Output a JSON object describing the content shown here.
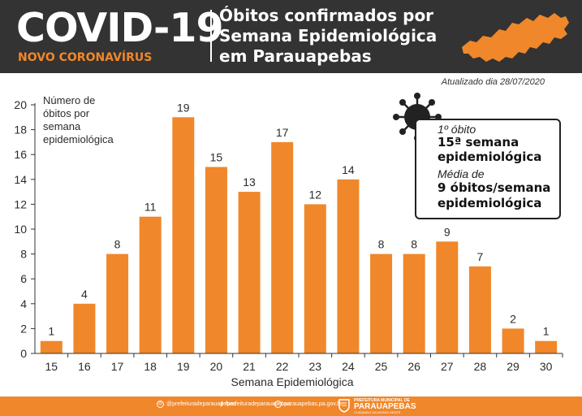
{
  "header": {
    "title": "COVID-19",
    "subtitle": "NOVO CORONAVÍRUS",
    "heading": "Óbitos confirmados por Semana Epidemiológica em Parauapebas"
  },
  "updated": "Atualizado dia 28/07/2020",
  "y_axis_description": "Número de óbitos por semana epidemiológica",
  "info_box": {
    "first_death_label": "1º óbito",
    "first_death_value": "15ª semana epidemiológica",
    "average_label": "Média de",
    "average_value": "9 óbitos/semana epidemiológica"
  },
  "chart_data": {
    "type": "bar",
    "title": "Óbitos confirmados por Semana Epidemiológica em Parauapebas",
    "xlabel": "Semana Epidemiológica",
    "ylabel": "Número de óbitos por semana epidemiológica",
    "ylim": [
      0,
      20
    ],
    "yticks": [
      0,
      2,
      4,
      6,
      8,
      10,
      12,
      14,
      16,
      18,
      20
    ],
    "categories": [
      "15",
      "16",
      "17",
      "18",
      "19",
      "20",
      "21",
      "22",
      "23",
      "24",
      "25",
      "26",
      "27",
      "28",
      "29",
      "30"
    ],
    "values": [
      1,
      4,
      8,
      11,
      19,
      15,
      13,
      17,
      12,
      14,
      8,
      8,
      9,
      7,
      2,
      1
    ],
    "bar_color": "#f0872a",
    "grid": false
  },
  "footer": {
    "social": [
      {
        "icon": "instagram-icon",
        "handle": "@prefeituradeparauapebas"
      },
      {
        "icon": "facebook-icon",
        "handle": "/prefeituradeparauapebas"
      },
      {
        "icon": "web-icon",
        "handle": "parauapebas.pa.gov.br"
      }
    ],
    "logo_line1": "PREFEITURA MUNICIPAL DE",
    "logo_line2": "PARAUAPEBAS",
    "logo_line3": "CUIDANDO DA NOSSA GENTE"
  },
  "colors": {
    "header_bg": "#333333",
    "accent": "#f0872a",
    "text": "#2b2b2b"
  }
}
